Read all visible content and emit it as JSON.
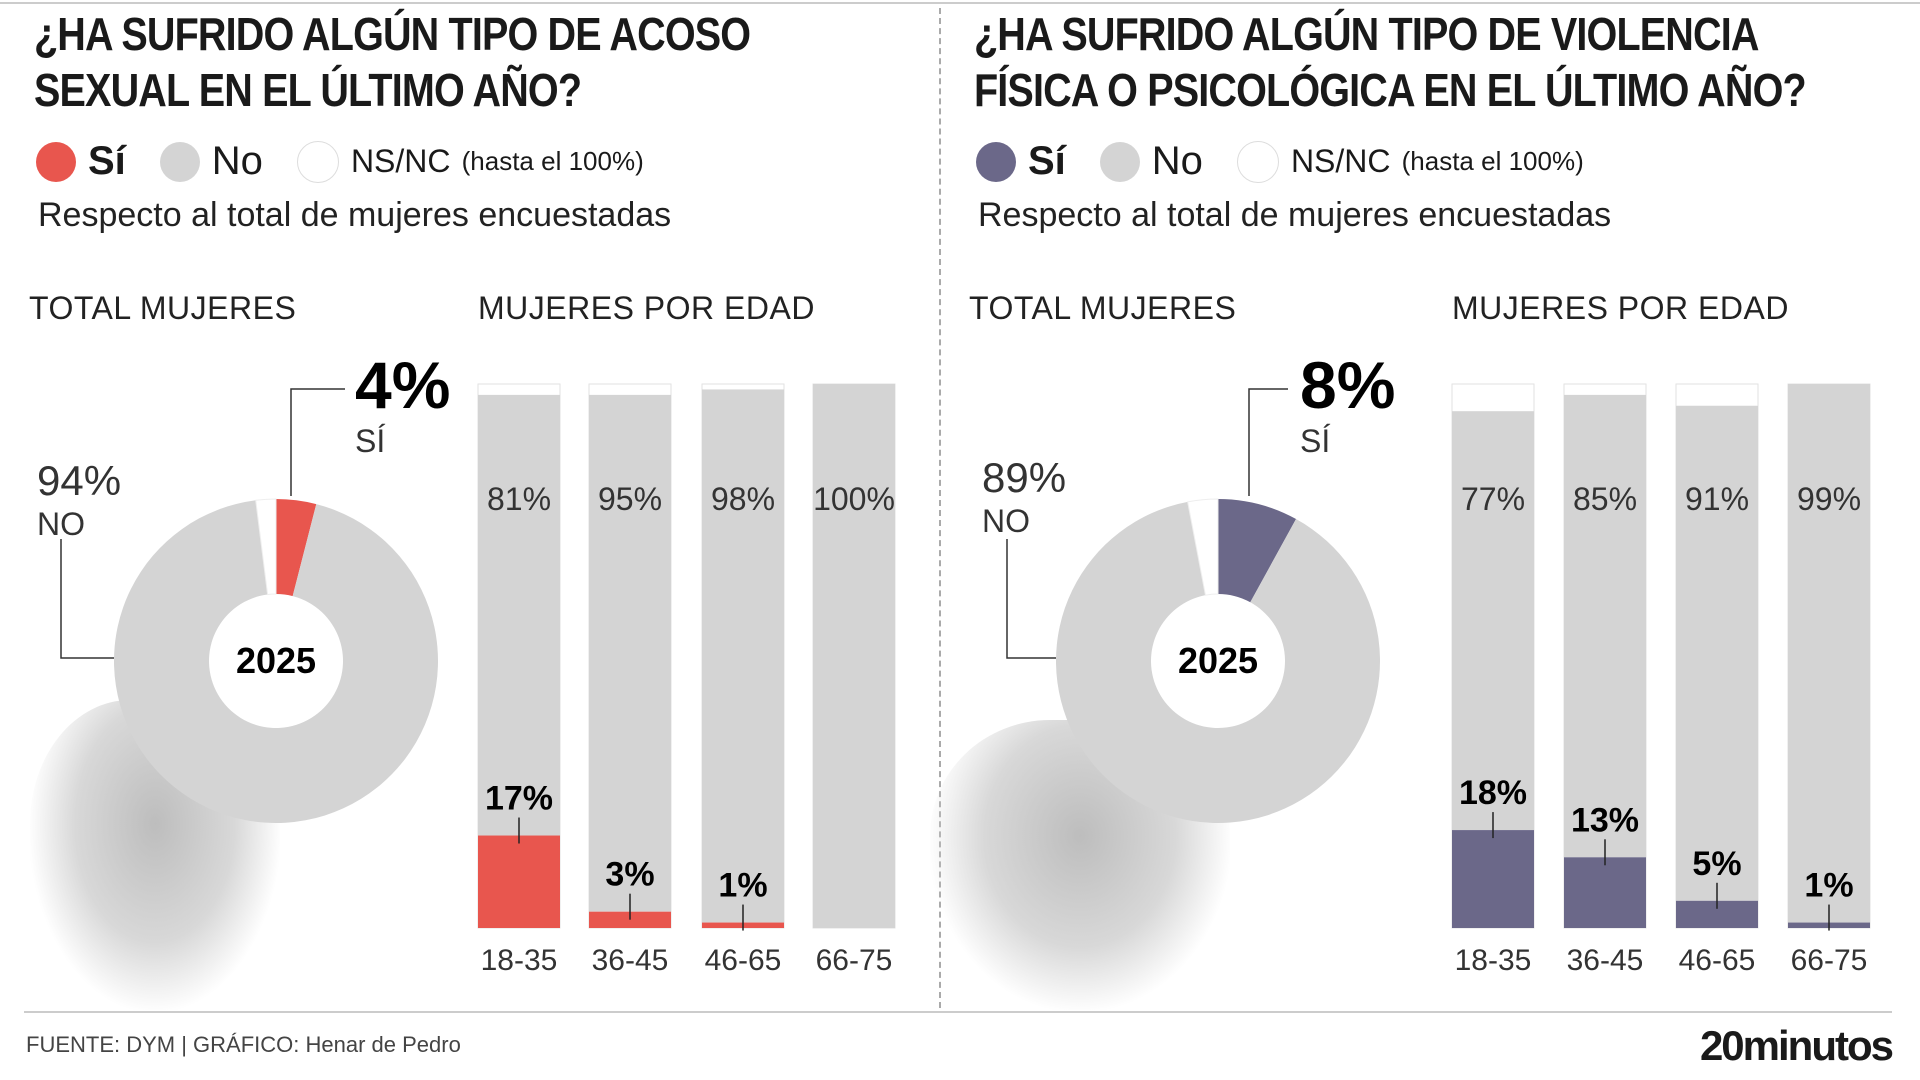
{
  "colors": {
    "si_left": "#e8564e",
    "si_right": "#6b6889",
    "no": "#d4d4d4",
    "nsnc": "#ffffff"
  },
  "legend": {
    "si": "Sí",
    "no": "No",
    "nsnc": "NS/NC",
    "nsnc_note": "(hasta el 100%)"
  },
  "panels": [
    {
      "title_line1": "¿HA SUFRIDO ALGÚN TIPO DE ACOSO",
      "title_line2": "SEXUAL EN EL ÚLTIMO AÑO?",
      "subtitle": "Respecto al total de mujeres encuestadas",
      "total_heading": "TOTAL MUJERES",
      "age_heading": "MUJERES POR EDAD",
      "donut": {
        "center_label": "2025",
        "si_pct": 4,
        "no_pct": 94,
        "si_label": "4%",
        "si_word": "SÍ",
        "no_label": "94%",
        "no_word": "NO"
      }
    },
    {
      "title_line1": "¿HA SUFRIDO ALGÚN TIPO DE VIOLENCIA",
      "title_line2": "FÍSICA O PSICOLÓGICA EN EL ÚLTIMO AÑO?",
      "subtitle": "Respecto al total de mujeres encuestadas",
      "total_heading": "TOTAL MUJERES",
      "age_heading": "MUJERES POR EDAD",
      "donut": {
        "center_label": "2025",
        "si_pct": 8,
        "no_pct": 89,
        "si_label": "8%",
        "si_word": "SÍ",
        "no_label": "89%",
        "no_word": "NO"
      }
    }
  ],
  "chart_data": [
    {
      "type": "bar",
      "stacked": true,
      "categories": [
        "18-35",
        "36-45",
        "46-65",
        "66-75"
      ],
      "series": [
        {
          "name": "Sí",
          "values": [
            17,
            3,
            1,
            0
          ],
          "labels": [
            "17%",
            "3%",
            "1%",
            ""
          ]
        },
        {
          "name": "No",
          "values": [
            81,
            95,
            98,
            100
          ],
          "labels": [
            "81%",
            "95%",
            "98%",
            "100%"
          ]
        }
      ],
      "ylim": [
        0,
        100
      ]
    },
    {
      "type": "bar",
      "stacked": true,
      "categories": [
        "18-35",
        "36-45",
        "46-65",
        "66-75"
      ],
      "series": [
        {
          "name": "Sí",
          "values": [
            18,
            13,
            5,
            1
          ],
          "labels": [
            "18%",
            "13%",
            "5%",
            "1%"
          ]
        },
        {
          "name": "No",
          "values": [
            77,
            85,
            91,
            99
          ],
          "labels": [
            "77%",
            "85%",
            "91%",
            "99%"
          ]
        }
      ],
      "ylim": [
        0,
        100
      ]
    }
  ],
  "footer": {
    "source": "FUENTE: DYM  |  GRÁFICO: Henar de Pedro",
    "brand": "20minutos"
  }
}
